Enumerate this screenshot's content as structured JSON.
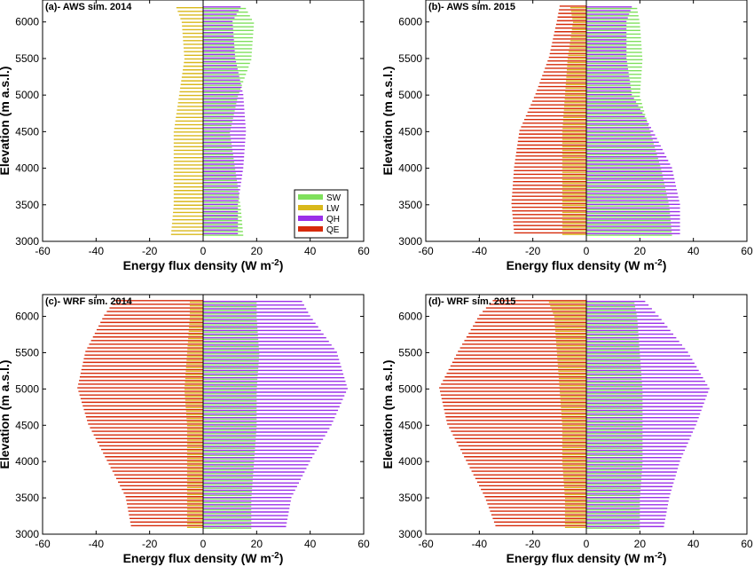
{
  "chart_data": [
    {
      "type": "bar",
      "orientation": "horizontal-diverging",
      "title": "(a)- AWS sim. 2014",
      "xlabel": "Energy flux density (W m",
      "xlabel_superscript": "-2",
      "xlabel_suffix": ")",
      "ylabel": "Elevation (m a.s.l.)",
      "xlim": [
        -60,
        60
      ],
      "ylim": [
        3000,
        6300
      ],
      "xticks": [
        "-60",
        "-40",
        "-20",
        "0",
        "20",
        "40",
        "60"
      ],
      "yticks": [
        "3000",
        "3500",
        "4000",
        "4500",
        "5000",
        "5500",
        "6000"
      ],
      "legend": {
        "show": true,
        "position": "bottom-right",
        "entries": [
          "SW",
          "LW",
          "QH",
          "QE"
        ]
      },
      "colors": {
        "SW": "#7fe05c",
        "LW": "#d9b81a",
        "QH": "#9b30e8",
        "QE": "#d62a0a"
      },
      "elevation": {
        "start": 3100,
        "end": 6200,
        "step": 50
      },
      "series": [
        {
          "name": "SW",
          "profile": [
            [
              3100,
              15
            ],
            [
              3500,
              14
            ],
            [
              4000,
              12
            ],
            [
              4500,
              10
            ],
            [
              5000,
              13
            ],
            [
              5500,
              18
            ],
            [
              6000,
              19
            ],
            [
              6200,
              16
            ]
          ]
        },
        {
          "name": "LW",
          "profile": [
            [
              3100,
              -12
            ],
            [
              3500,
              -11
            ],
            [
              4000,
              -11
            ],
            [
              4500,
              -11
            ],
            [
              5000,
              -9
            ],
            [
              5500,
              -7
            ],
            [
              6000,
              -8
            ],
            [
              6200,
              -10
            ]
          ]
        },
        {
          "name": "QH",
          "profile": [
            [
              3100,
              13
            ],
            [
              3500,
              13
            ],
            [
              4000,
              15
            ],
            [
              4500,
              16
            ],
            [
              5000,
              15
            ],
            [
              5500,
              12
            ],
            [
              6000,
              11
            ],
            [
              6200,
              14
            ]
          ]
        },
        {
          "name": "QE",
          "profile": [
            [
              3100,
              0
            ],
            [
              6200,
              0
            ]
          ]
        }
      ]
    },
    {
      "type": "bar",
      "orientation": "horizontal-diverging",
      "title": "(b)- AWS sim. 2015",
      "xlabel": "Energy flux density (W m",
      "xlabel_superscript": "-2",
      "xlabel_suffix": ")",
      "ylabel": "Elevation (m a.s.l.)",
      "xlim": [
        -60,
        60
      ],
      "ylim": [
        3000,
        6300
      ],
      "xticks": [
        "-60",
        "-40",
        "-20",
        "0",
        "20",
        "40",
        "60"
      ],
      "yticks": [
        "3000",
        "3500",
        "4000",
        "4500",
        "5000",
        "5500",
        "6000"
      ],
      "legend": {
        "show": false
      },
      "colors": {
        "SW": "#7fe05c",
        "LW": "#d9b81a",
        "QH": "#9b30e8",
        "QE": "#d62a0a"
      },
      "elevation": {
        "start": 3100,
        "end": 6200,
        "step": 50
      },
      "series": [
        {
          "name": "SW",
          "profile": [
            [
              3100,
              32
            ],
            [
              3500,
              31
            ],
            [
              4000,
              28
            ],
            [
              4500,
              24
            ],
            [
              5000,
              20
            ],
            [
              5500,
              21
            ],
            [
              6000,
              20
            ],
            [
              6200,
              19
            ]
          ]
        },
        {
          "name": "LW",
          "profile": [
            [
              3100,
              -9
            ],
            [
              3500,
              -9
            ],
            [
              4000,
              -9
            ],
            [
              4500,
              -9
            ],
            [
              5000,
              -8
            ],
            [
              5500,
              -7
            ],
            [
              6000,
              -5
            ],
            [
              6200,
              -6
            ]
          ]
        },
        {
          "name": "QH",
          "profile": [
            [
              3100,
              35
            ],
            [
              3500,
              35
            ],
            [
              4000,
              32
            ],
            [
              4500,
              25
            ],
            [
              5000,
              17
            ],
            [
              5500,
              15
            ],
            [
              6000,
              15
            ],
            [
              6200,
              17
            ]
          ]
        },
        {
          "name": "QE",
          "profile": [
            [
              3100,
              -27
            ],
            [
              3500,
              -28
            ],
            [
              4000,
              -27
            ],
            [
              4500,
              -25
            ],
            [
              5000,
              -19
            ],
            [
              5500,
              -14
            ],
            [
              6000,
              -11
            ],
            [
              6200,
              -10
            ]
          ]
        }
      ]
    },
    {
      "type": "bar",
      "orientation": "horizontal-diverging",
      "title": "(c)- WRF sim. 2014",
      "xlabel": "Energy flux density (W m",
      "xlabel_superscript": "-2",
      "xlabel_suffix": ")",
      "ylabel": "Elevation (m a.s.l.)",
      "xlim": [
        -60,
        60
      ],
      "ylim": [
        3000,
        6300
      ],
      "xticks": [
        "-60",
        "-40",
        "-20",
        "0",
        "20",
        "40",
        "60"
      ],
      "yticks": [
        "3000",
        "3500",
        "4000",
        "4500",
        "5000",
        "5500",
        "6000"
      ],
      "legend": {
        "show": false
      },
      "colors": {
        "SW": "#7fe05c",
        "LW": "#d9b81a",
        "QH": "#9b30e8",
        "QE": "#d62a0a"
      },
      "elevation": {
        "start": 3100,
        "end": 6200,
        "step": 50
      },
      "series": [
        {
          "name": "SW",
          "profile": [
            [
              3100,
              18
            ],
            [
              3500,
              18
            ],
            [
              4000,
              19
            ],
            [
              4500,
              20
            ],
            [
              5000,
              20
            ],
            [
              5500,
              21
            ],
            [
              6000,
              20
            ],
            [
              6200,
              20
            ]
          ]
        },
        {
          "name": "LW",
          "profile": [
            [
              3100,
              -6
            ],
            [
              3500,
              -6
            ],
            [
              4000,
              -6
            ],
            [
              4500,
              -6
            ],
            [
              5000,
              -7
            ],
            [
              5500,
              -6
            ],
            [
              6000,
              -5
            ],
            [
              6200,
              -5
            ]
          ]
        },
        {
          "name": "QH",
          "profile": [
            [
              3100,
              31
            ],
            [
              3500,
              33
            ],
            [
              4000,
              40
            ],
            [
              4500,
              48
            ],
            [
              5000,
              54
            ],
            [
              5500,
              50
            ],
            [
              6000,
              40
            ],
            [
              6200,
              37
            ]
          ]
        },
        {
          "name": "QE",
          "profile": [
            [
              3100,
              -27
            ],
            [
              3500,
              -29
            ],
            [
              4000,
              -36
            ],
            [
              4500,
              -43
            ],
            [
              5000,
              -47
            ],
            [
              5500,
              -44
            ],
            [
              6000,
              -37
            ],
            [
              6200,
              -33
            ]
          ]
        }
      ]
    },
    {
      "type": "bar",
      "orientation": "horizontal-diverging",
      "title": "(d)- WRF sim. 2015",
      "xlabel": "Energy flux density (W m",
      "xlabel_superscript": "-2",
      "xlabel_suffix": ")",
      "ylabel": "Elevation (m a.s.l.)",
      "xlim": [
        -60,
        60
      ],
      "ylim": [
        3000,
        6300
      ],
      "xticks": [
        "-60",
        "-40",
        "-20",
        "0",
        "20",
        "40",
        "60"
      ],
      "yticks": [
        "3000",
        "3500",
        "4000",
        "4500",
        "5000",
        "5500",
        "6000"
      ],
      "legend": {
        "show": false
      },
      "colors": {
        "SW": "#7fe05c",
        "LW": "#d9b81a",
        "QH": "#9b30e8",
        "QE": "#d62a0a"
      },
      "elevation": {
        "start": 3100,
        "end": 6200,
        "step": 50
      },
      "series": [
        {
          "name": "SW",
          "profile": [
            [
              3100,
              20
            ],
            [
              3500,
              20
            ],
            [
              4000,
              21
            ],
            [
              4500,
              21
            ],
            [
              5000,
              21
            ],
            [
              5500,
              20
            ],
            [
              6000,
              19
            ],
            [
              6200,
              18
            ]
          ]
        },
        {
          "name": "LW",
          "profile": [
            [
              3100,
              -8
            ],
            [
              3500,
              -8
            ],
            [
              4000,
              -9
            ],
            [
              4500,
              -9
            ],
            [
              5000,
              -10
            ],
            [
              5500,
              -11
            ],
            [
              6000,
              -12
            ],
            [
              6200,
              -14
            ]
          ]
        },
        {
          "name": "QH",
          "profile": [
            [
              3100,
              29
            ],
            [
              3500,
              31
            ],
            [
              4000,
              35
            ],
            [
              4500,
              41
            ],
            [
              5000,
              46
            ],
            [
              5500,
              38
            ],
            [
              6000,
              27
            ],
            [
              6200,
              22
            ]
          ]
        },
        {
          "name": "QE",
          "profile": [
            [
              3100,
              -34
            ],
            [
              3500,
              -38
            ],
            [
              4000,
              -45
            ],
            [
              4500,
              -52
            ],
            [
              5000,
              -55
            ],
            [
              5500,
              -48
            ],
            [
              6000,
              -40
            ],
            [
              6200,
              -35
            ]
          ]
        }
      ]
    }
  ]
}
